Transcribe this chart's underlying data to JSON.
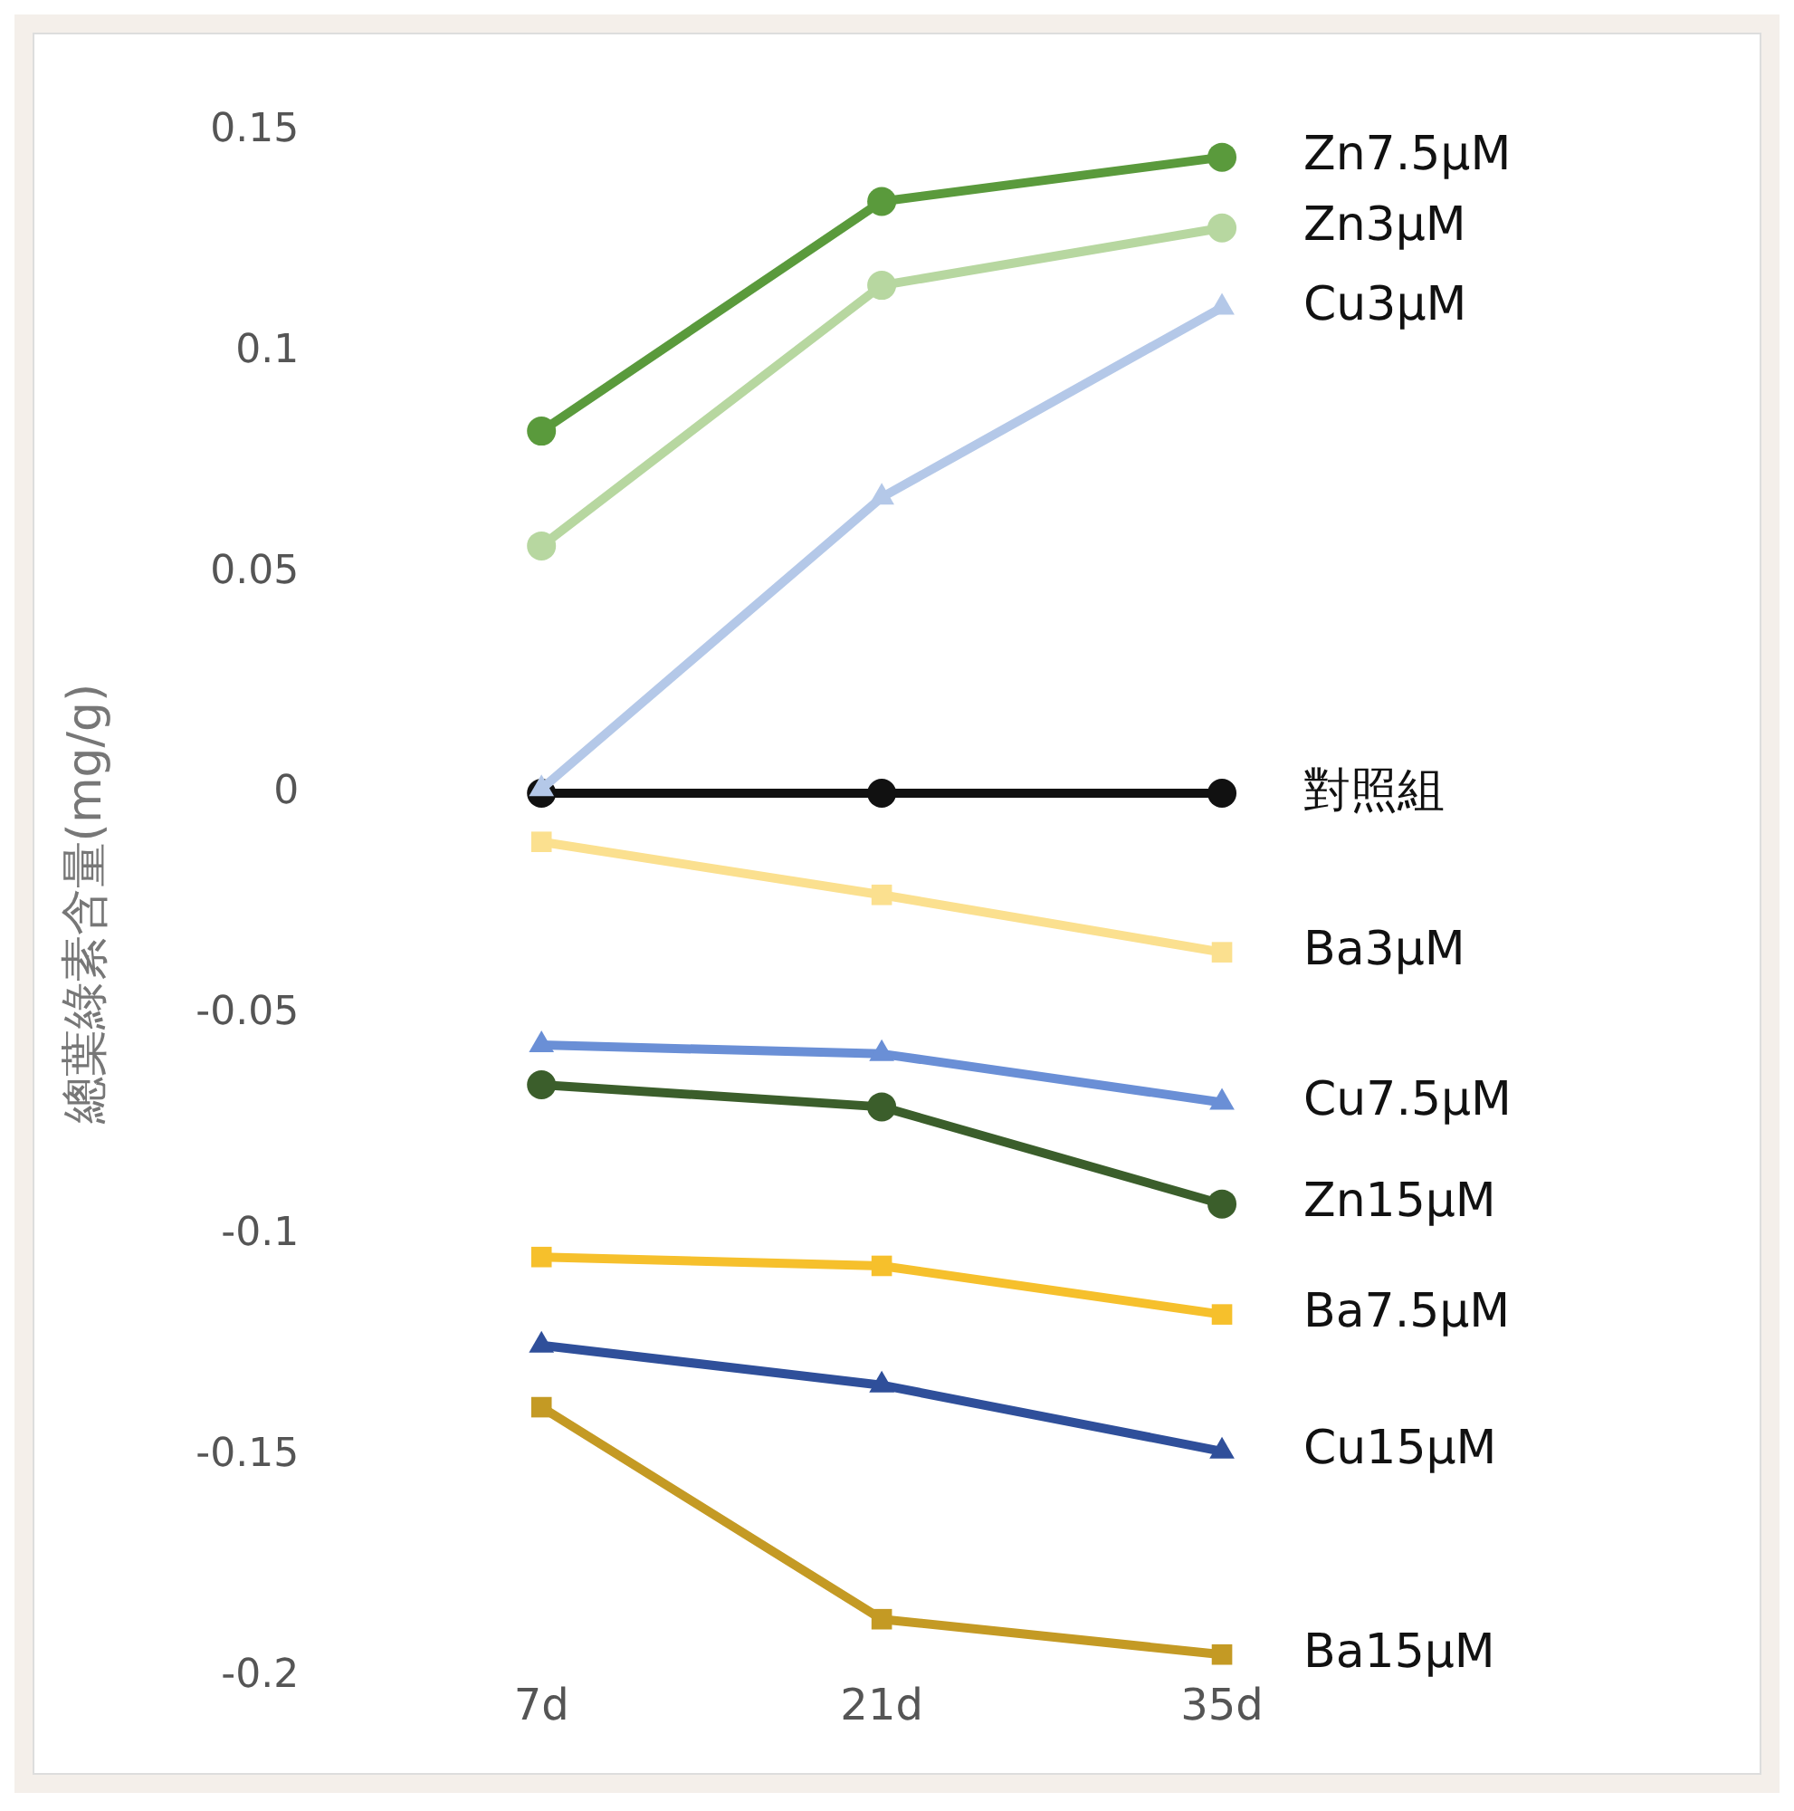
{
  "chart_data": {
    "type": "line",
    "ylabel": "總葉綠素含量(mg/g)",
    "categories": [
      "7d",
      "21d",
      "35d"
    ],
    "ylim": [
      -0.2,
      0.15
    ],
    "yticks": [
      -0.2,
      -0.15,
      -0.1,
      -0.05,
      0,
      0.05,
      0.1,
      0.15
    ],
    "grid": false,
    "legend": false,
    "series": [
      {
        "name": "Zn7.5μM",
        "color": "#5a9a3c",
        "marker": "circle",
        "values": [
          0.082,
          0.134,
          0.144
        ]
      },
      {
        "name": "Zn3μM",
        "color": "#b7d7a0",
        "marker": "circle",
        "values": [
          0.056,
          0.115,
          0.128
        ]
      },
      {
        "name": "Cu3μM",
        "color": "#b4c8e8",
        "marker": "triangle",
        "values": [
          0.001,
          0.067,
          0.11
        ]
      },
      {
        "name": "對照組",
        "color": "#111111",
        "marker": "circle",
        "values": [
          0,
          0,
          0
        ]
      },
      {
        "name": "Ba3μM",
        "color": "#fbe08f",
        "marker": "square",
        "values": [
          -0.011,
          -0.023,
          -0.036
        ]
      },
      {
        "name": "Cu7.5μM",
        "color": "#6a8fd6",
        "marker": "triangle",
        "values": [
          -0.057,
          -0.059,
          -0.07
        ]
      },
      {
        "name": "Zn15μM",
        "color": "#3b5e2b",
        "marker": "circle",
        "values": [
          -0.066,
          -0.071,
          -0.093
        ]
      },
      {
        "name": "Ba7.5μM",
        "color": "#f6c02c",
        "marker": "square",
        "values": [
          -0.105,
          -0.107,
          -0.118
        ]
      },
      {
        "name": "Cu15μM",
        "color": "#2f4f9a",
        "marker": "triangle",
        "values": [
          -0.125,
          -0.134,
          -0.149
        ]
      },
      {
        "name": "Ba15μM",
        "color": "#c49a24",
        "marker": "square",
        "values": [
          -0.139,
          -0.187,
          -0.195
        ]
      }
    ]
  }
}
